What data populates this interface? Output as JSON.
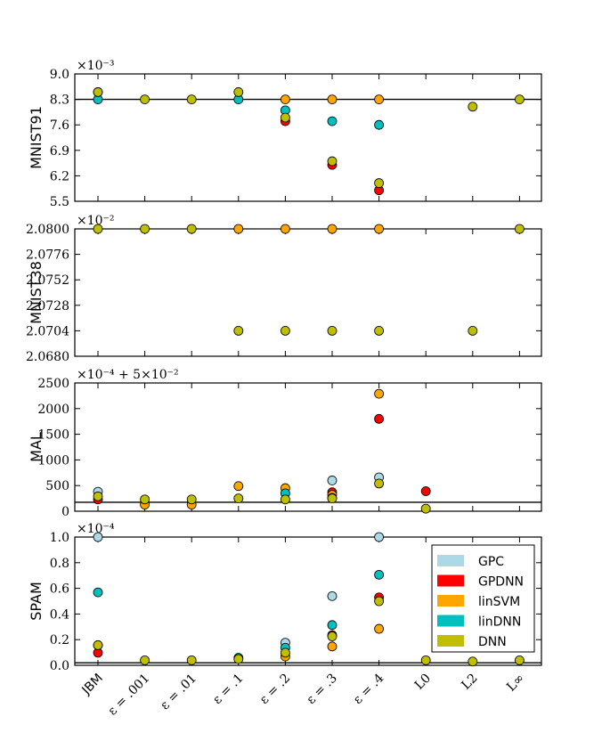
{
  "chart_data": {
    "type": "scatter",
    "categories": [
      "JBM",
      "ε = .001",
      "ε = .01",
      "ε = .1",
      "ε = .2",
      "ε = .3",
      "ε = .4",
      "L0",
      "L2",
      "L∞"
    ],
    "legend": {
      "placement": "bottom panel, upper right",
      "entries": [
        {
          "name": "GPC",
          "color": "#add8e6"
        },
        {
          "name": "GPDNN",
          "color": "#ff0000"
        },
        {
          "name": "linSVM",
          "color": "#ffa500"
        },
        {
          "name": "linDNN",
          "color": "#00bfbf"
        },
        {
          "name": "DNN",
          "color": "#bfbf00"
        }
      ]
    },
    "panels": [
      {
        "ylabel": "MNIST91",
        "offset_text": "×10⁻³",
        "yticks": [
          "5.5",
          "6.2",
          "6.9",
          "7.6",
          "8.3",
          "9.0"
        ],
        "ylim": [
          5.5,
          9.0
        ],
        "baseline": 8.3,
        "series": [
          {
            "name": "GPC",
            "points": []
          },
          {
            "name": "GPDNN",
            "points": [
              [
                4,
                7.7
              ],
              [
                5,
                6.5
              ],
              [
                6,
                5.8
              ]
            ]
          },
          {
            "name": "linSVM",
            "points": [
              [
                0,
                8.5
              ],
              [
                4,
                8.3
              ],
              [
                5,
                8.3
              ],
              [
                6,
                8.3
              ]
            ]
          },
          {
            "name": "linDNN",
            "points": [
              [
                0,
                8.3
              ],
              [
                3,
                8.3
              ],
              [
                4,
                8.0
              ],
              [
                5,
                7.7
              ],
              [
                6,
                7.6
              ]
            ]
          },
          {
            "name": "DNN",
            "points": [
              [
                0,
                8.5
              ],
              [
                1,
                8.3
              ],
              [
                2,
                8.3
              ],
              [
                3,
                8.5
              ],
              [
                4,
                7.8
              ],
              [
                5,
                6.6
              ],
              [
                6,
                6.0
              ],
              [
                8,
                8.1
              ],
              [
                9,
                8.3
              ]
            ]
          }
        ]
      },
      {
        "ylabel": "MNIST38",
        "offset_text": "×10⁻²",
        "yticks": [
          "2.0680",
          "2.0704",
          "2.0728",
          "2.0752",
          "2.0776",
          "2.0800"
        ],
        "ylim": [
          2.068,
          2.08
        ],
        "baseline": null,
        "series": [
          {
            "name": "GPC",
            "points": []
          },
          {
            "name": "GPDNN",
            "points": []
          },
          {
            "name": "linSVM",
            "points": [
              [
                3,
                2.08
              ],
              [
                4,
                2.08
              ],
              [
                5,
                2.08
              ],
              [
                6,
                2.08
              ]
            ]
          },
          {
            "name": "linDNN",
            "points": []
          },
          {
            "name": "DNN",
            "points": [
              [
                0,
                2.08
              ],
              [
                1,
                2.08
              ],
              [
                2,
                2.08
              ],
              [
                9,
                2.08
              ],
              [
                3,
                2.0704
              ],
              [
                4,
                2.0704
              ],
              [
                5,
                2.0704
              ],
              [
                6,
                2.0704
              ],
              [
                8,
                2.0704
              ]
            ]
          }
        ]
      },
      {
        "ylabel": "MAL",
        "offset_text": "×10⁻⁴ + 5×10⁻²",
        "yticks": [
          "0",
          "500",
          "1000",
          "1500",
          "2000",
          "2500"
        ],
        "ylim": [
          0,
          2500
        ],
        "baseline": 175,
        "series": [
          {
            "name": "GPC",
            "points": [
              [
                0,
                380
              ],
              [
                5,
                600
              ],
              [
                6,
                660
              ]
            ]
          },
          {
            "name": "GPDNN",
            "points": [
              [
                0,
                230
              ],
              [
                5,
                370
              ],
              [
                6,
                1800
              ],
              [
                7,
                390
              ]
            ]
          },
          {
            "name": "linSVM",
            "points": [
              [
                1,
                130
              ],
              [
                2,
                130
              ],
              [
                3,
                490
              ],
              [
                4,
                450
              ],
              [
                5,
                320
              ],
              [
                6,
                2290
              ]
            ]
          },
          {
            "name": "linDNN",
            "points": [
              [
                4,
                350
              ],
              [
                5,
                260
              ]
            ]
          },
          {
            "name": "DNN",
            "points": [
              [
                0,
                290
              ],
              [
                1,
                230
              ],
              [
                2,
                230
              ],
              [
                3,
                250
              ],
              [
                4,
                230
              ],
              [
                5,
                250
              ],
              [
                6,
                540
              ],
              [
                7,
                50
              ]
            ]
          }
        ]
      },
      {
        "ylabel": "SPAM",
        "offset_text": "×10⁻⁴",
        "yticks": [
          "0.0",
          "0.2",
          "0.4",
          "0.6",
          "0.8",
          "1.0"
        ],
        "ylim": [
          -0.02,
          1.0
        ],
        "baseline": 0.0,
        "series": [
          {
            "name": "GPC",
            "points": [
              [
                0,
                1.0
              ],
              [
                4,
                0.16
              ],
              [
                5,
                0.53
              ],
              [
                6,
                1.0
              ]
            ]
          },
          {
            "name": "GPDNN",
            "points": [
              [
                0,
                0.08
              ],
              [
                5,
                0.22
              ],
              [
                6,
                0.52
              ]
            ]
          },
          {
            "name": "linSVM",
            "points": [
              [
                0,
                0.14
              ],
              [
                4,
                0.05
              ],
              [
                5,
                0.13
              ],
              [
                6,
                0.27
              ]
            ]
          },
          {
            "name": "linDNN",
            "points": [
              [
                0,
                0.56
              ],
              [
                3,
                0.04
              ],
              [
                4,
                0.12
              ],
              [
                5,
                0.3
              ],
              [
                6,
                0.7
              ]
            ]
          },
          {
            "name": "DNN",
            "points": [
              [
                0,
                0.14
              ],
              [
                1,
                0.02
              ],
              [
                2,
                0.02
              ],
              [
                3,
                0.03
              ],
              [
                4,
                0.08
              ],
              [
                5,
                0.21
              ],
              [
                6,
                0.49
              ],
              [
                7,
                0.02
              ],
              [
                8,
                0.01
              ],
              [
                9,
                0.02
              ]
            ]
          }
        ]
      }
    ]
  }
}
